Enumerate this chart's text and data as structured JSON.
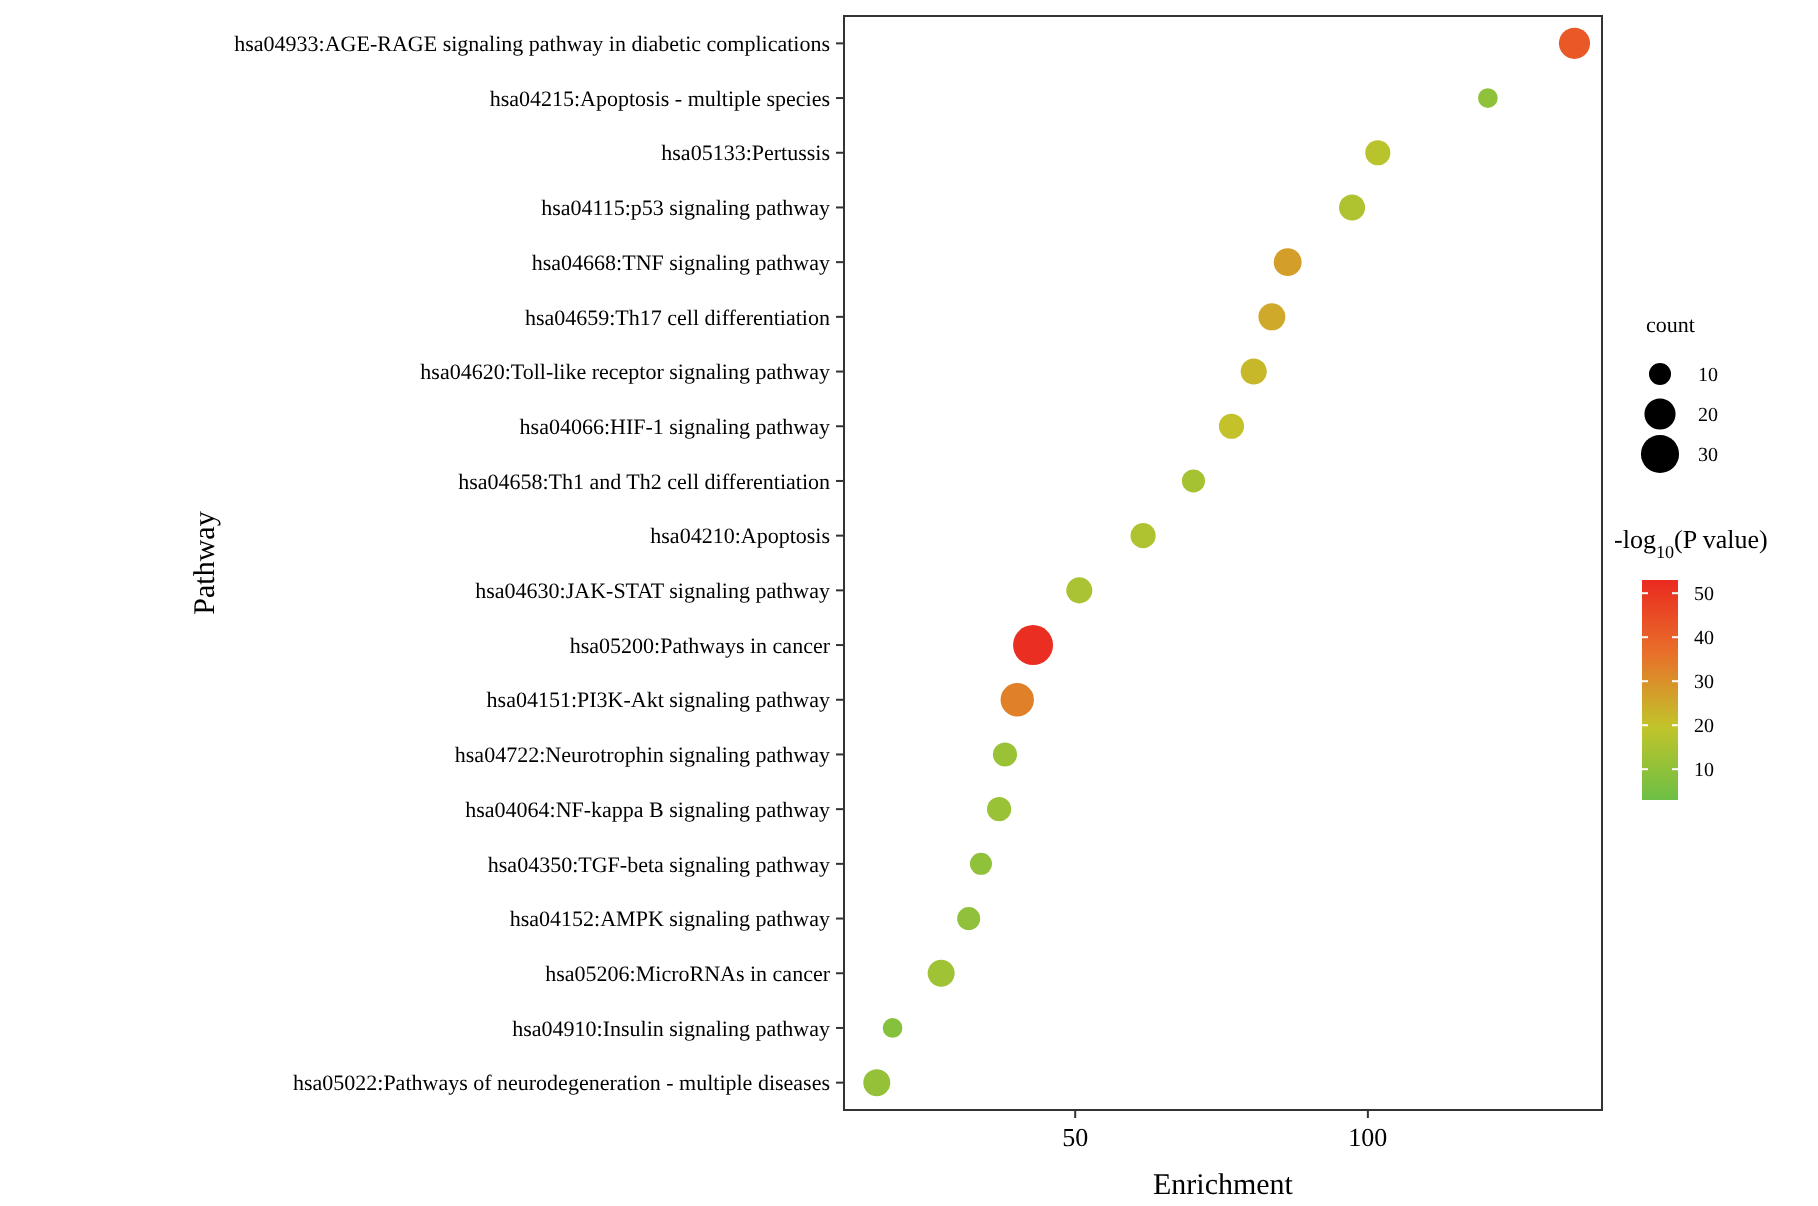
{
  "chart_data": {
    "type": "bubble",
    "orientation": "horizontal",
    "xlabel": "Enrichment",
    "ylabel": "Pathway",
    "legend_title": "count",
    "clabel": "-log$_{10}$(P value)",
    "categories": [
      "hsa04933:AGE-RAGE signaling pathway in diabetic complications",
      "hsa04215:Apoptosis - multiple species",
      "hsa05133:Pertussis",
      "hsa04115:p53 signaling pathway",
      "hsa04668:TNF signaling pathway",
      "hsa04659:Th17 cell differentiation",
      "hsa04620:Toll-like receptor signaling pathway",
      "hsa04066:HIF-1 signaling pathway",
      "hsa04658:Th1 and Th2 cell differentiation",
      "hsa04210:Apoptosis",
      "hsa04630:JAK-STAT signaling pathway",
      "hsa05200:Pathways in cancer",
      "hsa04151:PI3K-Akt signaling pathway",
      "hsa04722:Neurotrophin signaling pathway",
      "hsa04064:NF-kappa B signaling pathway",
      "hsa04350:TGF-beta signaling pathway",
      "hsa04152:AMPK signaling pathway",
      "hsa05206:MicroRNAs in cancer",
      "hsa04910:Insulin signaling pathway",
      "hsa05022:Pathways of neurodegeneration - multiple diseases"
    ],
    "series": [
      {
        "values": [
          135.3,
          120.5,
          101.7,
          97.3,
          86.3,
          83.6,
          80.5,
          76.7,
          70.2,
          61.6,
          50.7,
          42.8,
          40.1,
          38.0,
          37.0,
          33.9,
          31.8,
          27.1,
          18.8,
          16.1
        ],
        "sizes": [
          20,
          8,
          13,
          14,
          16,
          15,
          14,
          13,
          11,
          13,
          14,
          33,
          23,
          12,
          12,
          10,
          11,
          15,
          8,
          15
        ],
        "cvalues": [
          42,
          10,
          18,
          16,
          27,
          25,
          22,
          20,
          14,
          16,
          15,
          52,
          33,
          12,
          12,
          10,
          10,
          13,
          8,
          11
        ]
      }
    ],
    "xlim": [
      10.5,
      140
    ],
    "xticks": [
      50,
      100
    ],
    "size_legend": [
      10,
      20,
      30
    ],
    "clim": [
      3,
      53
    ],
    "cticks": [
      10,
      20,
      30,
      40,
      50
    ],
    "colors": [
      "#6cbf45",
      "#c2c42a",
      "#e8702a",
      "#ea2a20"
    ],
    "grid": false
  }
}
